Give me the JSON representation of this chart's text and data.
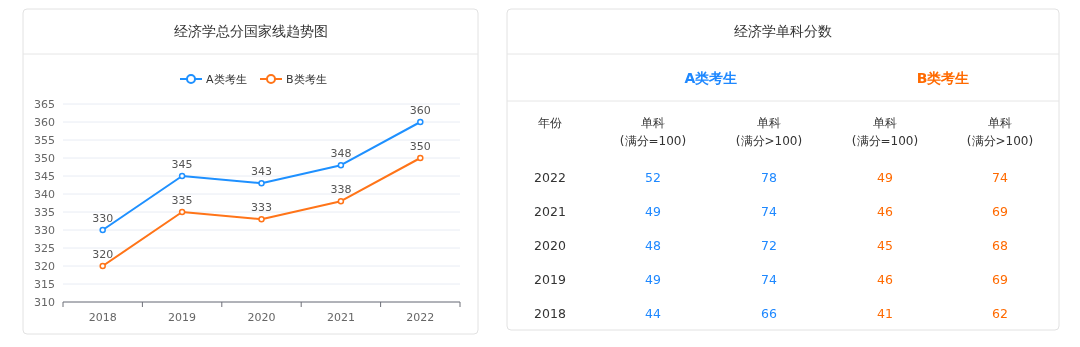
{
  "chart_data": [
    {
      "type": "line",
      "title": "经济学总分国家线趋势图",
      "categories": [
        "2018",
        "2019",
        "2020",
        "2021",
        "2022"
      ],
      "series": [
        {
          "name": "A类考生",
          "color": "#1e90ff",
          "values": [
            330,
            345,
            343,
            348,
            360
          ]
        },
        {
          "name": "B类考生",
          "color": "#ff7418",
          "values": [
            320,
            335,
            333,
            338,
            350
          ]
        }
      ],
      "ylim": [
        310,
        365
      ],
      "yticks": [
        310,
        315,
        320,
        325,
        330,
        335,
        340,
        345,
        350,
        355,
        360,
        365
      ],
      "grid": "y",
      "legend": "top",
      "marker": "circle",
      "data_labels": true
    },
    {
      "type": "heatmap",
      "title": "经济学单科分数",
      "ylabel": "年份",
      "annotations": [
        "A类考生",
        "B类考生"
      ],
      "categories": [
        "单科(满分=100)",
        "单科(满分>100)",
        "单科(满分=100)",
        "单科(满分>100)"
      ],
      "y_categories": [
        "2022",
        "2021",
        "2020",
        "2019",
        "2018"
      ],
      "cells": [
        [
          52,
          78,
          49,
          74
        ],
        [
          49,
          74,
          46,
          69
        ],
        [
          48,
          72,
          45,
          68
        ],
        [
          49,
          74,
          46,
          69
        ],
        [
          44,
          66,
          41,
          62
        ]
      ],
      "data_labels": true
    }
  ]
}
